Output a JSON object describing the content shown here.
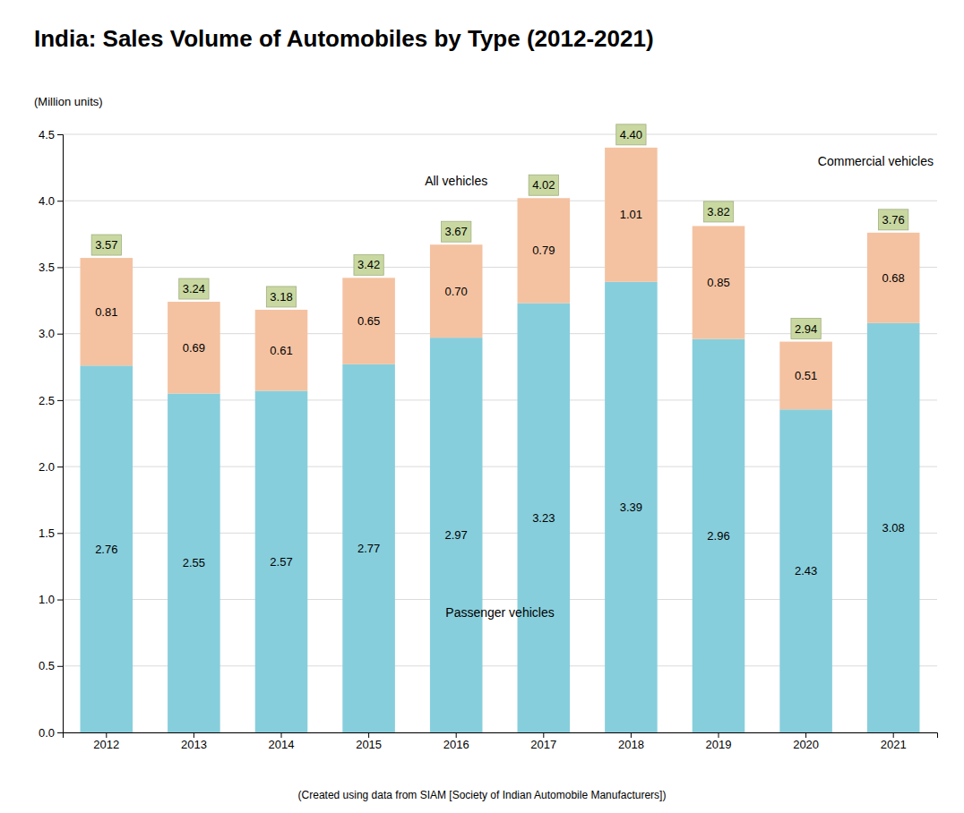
{
  "chart_data": {
    "type": "bar",
    "title": "India: Sales Volume of Automobiles by Type (2012-2021)",
    "ylabel": "(Million units)",
    "footer": "(Created using data from SIAM [Society of Indian Automobile Manufacturers])",
    "categories": [
      "2012",
      "2013",
      "2014",
      "2015",
      "2016",
      "2017",
      "2018",
      "2019",
      "2020",
      "2021"
    ],
    "series": [
      {
        "name": "Passenger vehicles",
        "color": "#87CEDC",
        "values": [
          2.76,
          2.55,
          2.57,
          2.77,
          2.97,
          3.23,
          3.39,
          2.96,
          2.43,
          3.08
        ],
        "value_labels": [
          "2.76",
          "2.55",
          "2.57",
          "2.77",
          "2.97",
          "3.23",
          "3.39",
          "2.96",
          "2.43",
          "3.08"
        ]
      },
      {
        "name": "Commercial vehicles",
        "color": "#F4C2A1",
        "values": [
          0.81,
          0.69,
          0.61,
          0.65,
          0.7,
          0.79,
          1.01,
          0.85,
          0.51,
          0.68
        ],
        "value_labels": [
          "0.81",
          "0.69",
          "0.61",
          "0.65",
          "0.70",
          "0.79",
          "1.01",
          "0.85",
          "0.51",
          "0.68"
        ]
      }
    ],
    "totals": {
      "name": "All vehicles",
      "color": "#C8D8A0",
      "values": [
        3.57,
        3.24,
        3.18,
        3.42,
        3.67,
        4.02,
        4.4,
        3.82,
        2.94,
        3.76
      ],
      "value_labels": [
        "3.57",
        "3.24",
        "3.18",
        "3.42",
        "3.67",
        "4.02",
        "4.40",
        "3.82",
        "2.94",
        "3.76"
      ]
    },
    "ylim": [
      0,
      4.5
    ],
    "yticks": [
      {
        "value": 0,
        "label": "0.0"
      },
      0.5,
      {
        "value": 1,
        "label": "1.0"
      },
      1.5,
      {
        "value": 2,
        "label": "2.0"
      },
      2.5,
      {
        "value": 3,
        "label": "3.0"
      },
      3.5,
      {
        "value": 4,
        "label": "4.0"
      },
      4.5
    ],
    "stacked": true,
    "data_labels": true,
    "grid": true
  }
}
